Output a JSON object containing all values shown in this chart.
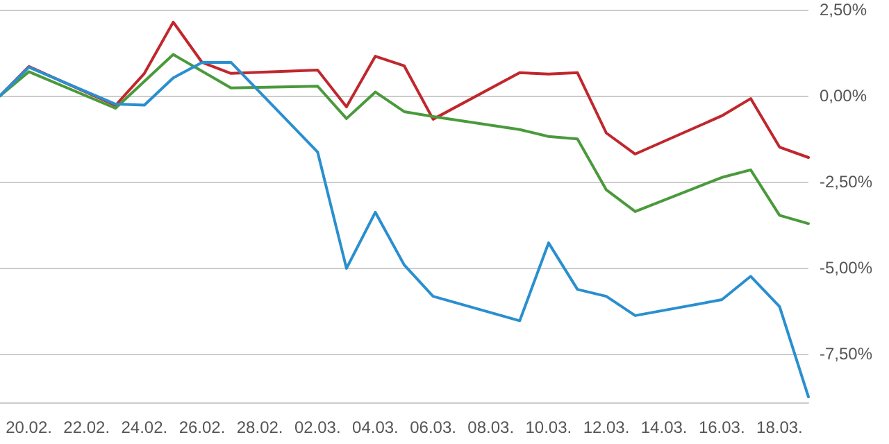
{
  "chart_data": {
    "type": "line",
    "xlim": [
      "--02-19",
      "--03-19"
    ],
    "ylim": [
      -8.9,
      2.5
    ],
    "xticks": [
      {
        "value": "--02-20",
        "label": "20.02."
      },
      {
        "value": "--02-22",
        "label": "22.02."
      },
      {
        "value": "--02-24",
        "label": "24.02."
      },
      {
        "value": "--02-26",
        "label": "26.02."
      },
      {
        "value": "--02-28",
        "label": "28.02."
      },
      {
        "value": "--03-02",
        "label": "02.03."
      },
      {
        "value": "--03-04",
        "label": "04.03."
      },
      {
        "value": "--03-06",
        "label": "06.03."
      },
      {
        "value": "--03-08",
        "label": "08.03."
      },
      {
        "value": "--03-10",
        "label": "10.03."
      },
      {
        "value": "--03-12",
        "label": "12.03."
      },
      {
        "value": "--03-14",
        "label": "14.03."
      },
      {
        "value": "--03-16",
        "label": "16.03."
      },
      {
        "value": "--03-18",
        "label": "18.03."
      }
    ],
    "yticks": [
      {
        "value": 2.5,
        "label": "2,50%"
      },
      {
        "value": 0,
        "label": "0,00%"
      },
      {
        "value": -2.5,
        "label": "-2,50%"
      },
      {
        "value": -5,
        "label": "-5,00%"
      },
      {
        "value": -7.5,
        "label": "-7,50%"
      }
    ],
    "grid": "y",
    "marker": "none",
    "line_style": "solid",
    "series": [
      {
        "color": "#c0272d",
        "x": [
          "--02-19",
          "--02-20",
          "--02-23",
          "--02-24",
          "--02-25",
          "--02-26",
          "--02-27",
          "--03-02",
          "--03-03",
          "--03-04",
          "--03-05",
          "--03-06",
          "--03-09",
          "--03-10",
          "--03-11",
          "--03-12",
          "--03-13",
          "--03-16",
          "--03-17",
          "--03-18",
          "--03-19"
        ],
        "values": [
          0,
          0.85,
          -0.28,
          0.65,
          2.14,
          0.97,
          0.65,
          0.75,
          -0.32,
          1.15,
          0.87,
          -0.68,
          0.67,
          0.63,
          0.67,
          -1.08,
          -1.69,
          -0.58,
          -0.08,
          -1.49,
          -1.79
        ]
      },
      {
        "color": "#4a9a3c",
        "x": [
          "--02-19",
          "--02-20",
          "--02-23",
          "--02-25",
          "--02-27",
          "--03-02",
          "--03-03",
          "--03-04",
          "--03-05",
          "--03-06",
          "--03-09",
          "--03-10",
          "--03-11",
          "--03-12",
          "--03-13",
          "--03-16",
          "--03-17",
          "--03-18",
          "--03-19"
        ],
        "values": [
          0,
          0.7,
          -0.36,
          1.2,
          0.23,
          0.28,
          -0.66,
          0.11,
          -0.46,
          -0.6,
          -0.98,
          -1.18,
          -1.25,
          -2.73,
          -3.36,
          -2.37,
          -2.15,
          -3.47,
          -3.71
        ]
      },
      {
        "color": "#2a8fcf",
        "x": [
          "--02-19",
          "--02-20",
          "--02-23",
          "--02-24",
          "--02-25",
          "--02-26",
          "--02-27",
          "--03-02",
          "--03-03",
          "--03-04",
          "--03-05",
          "--03-06",
          "--03-09",
          "--03-10",
          "--03-11",
          "--03-12",
          "--03-13",
          "--03-16",
          "--03-17",
          "--03-18",
          "--03-19"
        ],
        "values": [
          0,
          0.83,
          -0.24,
          -0.27,
          0.52,
          0.97,
          0.97,
          -1.63,
          -5.01,
          -3.38,
          -4.91,
          -5.82,
          -6.53,
          -4.27,
          -5.62,
          -5.82,
          -6.38,
          -5.92,
          -5.24,
          -6.12,
          -8.74
        ]
      }
    ]
  }
}
